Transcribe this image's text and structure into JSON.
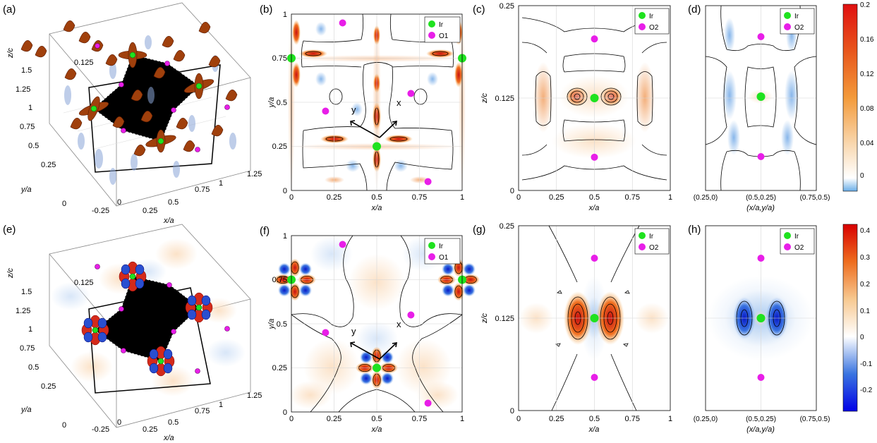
{
  "panels": [
    {
      "id": "a",
      "label": "(a)",
      "kind": "isosurface-3d",
      "axis_labels": [
        "x/a",
        "y/a",
        "z/c"
      ],
      "x_ticks": [
        "-0.25",
        "0",
        "0.25",
        "0.5",
        "0.75",
        "1",
        "1.25"
      ],
      "y_ticks": [
        "0",
        "0.25",
        "0.5",
        "0.75",
        "1",
        "1.25",
        "1.5"
      ],
      "z_ticks": [
        "0.125"
      ],
      "colors": {
        "lobe": "#a0400c",
        "negative": "#8aa6d8"
      }
    },
    {
      "id": "b",
      "label": "(b)",
      "kind": "contour",
      "xlabel": "x/a",
      "ylabel": "y/a",
      "xlim": [
        0,
        1
      ],
      "ylim": [
        0,
        1
      ],
      "x_ticks": [
        "0",
        "0.25",
        "0.5",
        "0.75",
        "1"
      ],
      "y_ticks": [
        "0",
        "0.25",
        "0.5",
        "0.75",
        "1"
      ],
      "legend": [
        "Ir",
        "O1"
      ],
      "axis_arrows": [
        "x",
        "y"
      ],
      "ir_points": [
        [
          0.5,
          0.25
        ],
        [
          0,
          0.75
        ],
        [
          1,
          0.75
        ]
      ],
      "o_points": [
        [
          0.3,
          0.95
        ],
        [
          0.2,
          0.45
        ],
        [
          0.7,
          0.55
        ],
        [
          0.8,
          0.05
        ]
      ]
    },
    {
      "id": "c",
      "label": "(c)",
      "kind": "contour",
      "xlabel": "x/a",
      "ylabel": "z/c",
      "xlim": [
        0,
        1
      ],
      "ylim": [
        0,
        0.25
      ],
      "x_ticks": [
        "0",
        "0.25",
        "0.5",
        "0.75",
        "1"
      ],
      "y_ticks": [
        "0",
        "0.125",
        "0.25"
      ],
      "legend": [
        "Ir",
        "O2"
      ],
      "ir_points": [
        [
          0.5,
          0.125
        ]
      ],
      "o_points": [
        [
          0.5,
          0.205
        ],
        [
          0.5,
          0.045
        ]
      ]
    },
    {
      "id": "d",
      "label": "(d)",
      "kind": "contour",
      "xlabel": "(x/a,y/a)",
      "x_ticks": [
        "(0.25,0)",
        "(0.5,0.25)",
        "(0.75,0.5)"
      ],
      "legend": [
        "Ir",
        "O2"
      ]
    },
    {
      "id": "e",
      "label": "(e)",
      "kind": "isosurface-3d",
      "axis_labels": [
        "x/a",
        "y/a",
        "z/c"
      ],
      "x_ticks": [
        "-0.25",
        "0",
        "0.25",
        "0.5",
        "0.75",
        "1",
        "1.25"
      ],
      "y_ticks": [
        "0",
        "0.25",
        "0.5",
        "0.75",
        "1",
        "1.25",
        "1.5"
      ],
      "z_ticks": [
        "0.125"
      ],
      "colors": {
        "positive": "#d42a1a",
        "negative": "#2a4fd0"
      }
    },
    {
      "id": "f",
      "label": "(f)",
      "kind": "contour",
      "xlabel": "x/a",
      "ylabel": "y/a",
      "xlim": [
        0,
        1
      ],
      "ylim": [
        0,
        1
      ],
      "x_ticks": [
        "0",
        "0.25",
        "0.5",
        "0.75",
        "1"
      ],
      "y_ticks": [
        "0",
        "0.25",
        "0.5",
        "0.75",
        "1"
      ],
      "legend": [
        "Ir",
        "O1"
      ],
      "axis_arrows": [
        "x",
        "y"
      ]
    },
    {
      "id": "g",
      "label": "(g)",
      "kind": "contour",
      "xlabel": "x/a",
      "ylabel": "z/c",
      "xlim": [
        0,
        1
      ],
      "ylim": [
        0,
        0.25
      ],
      "x_ticks": [
        "0",
        "0.25",
        "0.5",
        "0.75",
        "1"
      ],
      "y_ticks": [
        "0",
        "0.125",
        "0.25"
      ],
      "legend": [
        "Ir",
        "O2"
      ]
    },
    {
      "id": "h",
      "label": "(h)",
      "kind": "contour",
      "xlabel": "(x/a,y/a)",
      "x_ticks": [
        "(0.25,0)",
        "(0.5,0.25)",
        "(0.75,0.5)"
      ],
      "legend": [
        "Ir",
        "O2"
      ]
    }
  ],
  "colorbars": [
    {
      "id": "top",
      "ticks": [
        "0.2",
        "0.16",
        "0.12",
        "0.08",
        "0.04",
        "0"
      ],
      "range": [
        -0.015,
        0.2
      ]
    },
    {
      "id": "bottom",
      "ticks": [
        "0.4",
        "0.3",
        "0.2",
        "0.1",
        "0",
        "-0.1",
        "-0.2"
      ],
      "range": [
        -0.28,
        0.42
      ]
    }
  ],
  "colors": {
    "ir": "#1fe21f",
    "oxygen": "#e81ee8",
    "contour_line": "#000000",
    "grid": "#d6d6d6",
    "positive": "#e8781e",
    "negative": "#5a8ed8"
  },
  "chart_data": [
    {
      "type": "heatmap",
      "panel": "(b)",
      "xlabel": "x/a",
      "ylabel": "y/a",
      "xlim": [
        0,
        1
      ],
      "ylim": [
        0,
        1
      ],
      "series": [
        {
          "name": "Ir",
          "x": [
            0.5,
            0,
            1
          ],
          "y": [
            0.25,
            0.75,
            0.75
          ]
        },
        {
          "name": "O1",
          "x": [
            0.3,
            0.2,
            0.7,
            0.8
          ],
          "y": [
            0.95,
            0.45,
            0.55,
            0.05
          ]
        }
      ]
    },
    {
      "type": "heatmap",
      "panel": "(c)",
      "xlabel": "x/a",
      "ylabel": "z/c",
      "xlim": [
        0,
        1
      ],
      "ylim": [
        0,
        0.25
      ],
      "series": [
        {
          "name": "Ir",
          "x": [
            0.5
          ],
          "y": [
            0.125
          ]
        },
        {
          "name": "O2",
          "x": [
            0.5,
            0.5
          ],
          "y": [
            0.205,
            0.045
          ]
        }
      ]
    },
    {
      "type": "heatmap",
      "panel": "(f)",
      "xlabel": "x/a",
      "ylabel": "y/a",
      "xlim": [
        0,
        1
      ],
      "ylim": [
        0,
        1
      ],
      "series": [
        {
          "name": "Ir",
          "x": [
            0.5,
            0,
            1
          ],
          "y": [
            0.25,
            0.75,
            0.75
          ]
        },
        {
          "name": "O1",
          "x": [
            0.3,
            0.2,
            0.7,
            0.8
          ],
          "y": [
            0.95,
            0.45,
            0.55,
            0.05
          ]
        }
      ]
    },
    {
      "type": "heatmap",
      "panel": "(g)",
      "xlabel": "x/a",
      "ylabel": "z/c",
      "xlim": [
        0,
        1
      ],
      "ylim": [
        0,
        0.25
      ],
      "series": [
        {
          "name": "Ir",
          "x": [
            0.5
          ],
          "y": [
            0.125
          ]
        },
        {
          "name": "O2",
          "x": [
            0.5,
            0.5
          ],
          "y": [
            0.205,
            0.045
          ]
        }
      ]
    }
  ]
}
